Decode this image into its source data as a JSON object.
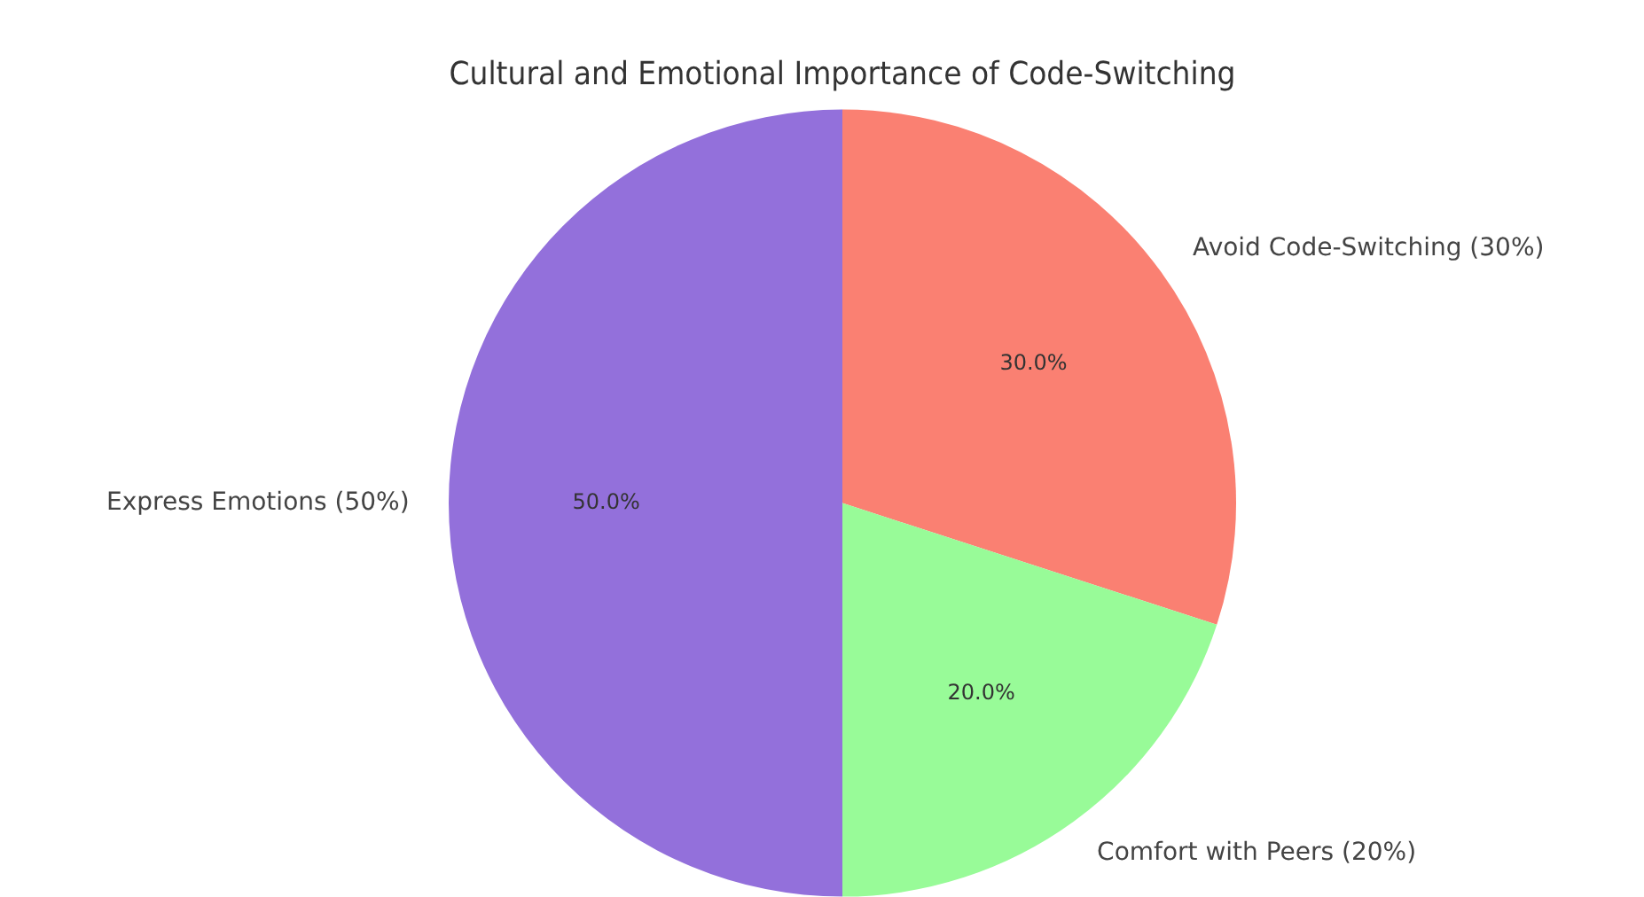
{
  "chart_data": {
    "type": "pie",
    "title": "Cultural and Emotional Importance of Code-Switching",
    "categories": [
      "Express Emotions (50%)",
      "Comfort with Peers (20%)",
      "Avoid Code-Switching (30%)"
    ],
    "values": [
      50,
      20,
      30
    ],
    "colors": [
      "#9370db",
      "#98fb98",
      "#fa8072"
    ],
    "value_labels": [
      "50.0%",
      "20.0%",
      "30.0%"
    ]
  }
}
